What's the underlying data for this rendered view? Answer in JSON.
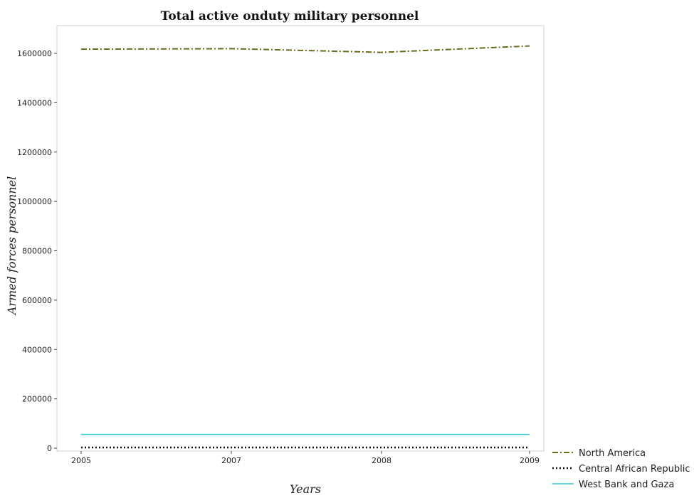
{
  "chart_data": {
    "type": "line",
    "title": "Total active onduty military personnel",
    "xlabel": "Years",
    "ylabel": "Armed forces personnel",
    "categories": [
      "2005",
      "2007",
      "2008",
      "2009"
    ],
    "ylim": [
      0,
      1700000
    ],
    "yticks": [
      0,
      200000,
      400000,
      600000,
      800000,
      1000000,
      1200000,
      1400000,
      1600000
    ],
    "ytick_labels": [
      "0",
      "200000",
      "400000",
      "600000",
      "800000",
      "1000000",
      "1200000",
      "1400000",
      "1600000"
    ],
    "grid": false,
    "legend_position": "bottom-right",
    "series": [
      {
        "name": "North America",
        "values": [
          1617000,
          1619000,
          1604000,
          1630000
        ],
        "color": "#6b6b1e",
        "dash": "dashdot"
      },
      {
        "name": "Central African Republic",
        "values": [
          3000,
          3000,
          3000,
          3000
        ],
        "color": "#111111",
        "dash": "dotted"
      },
      {
        "name": "West Bank and Gaza",
        "values": [
          56000,
          56000,
          56000,
          56000
        ],
        "color": "#33c8cc",
        "dash": "solid"
      }
    ]
  }
}
